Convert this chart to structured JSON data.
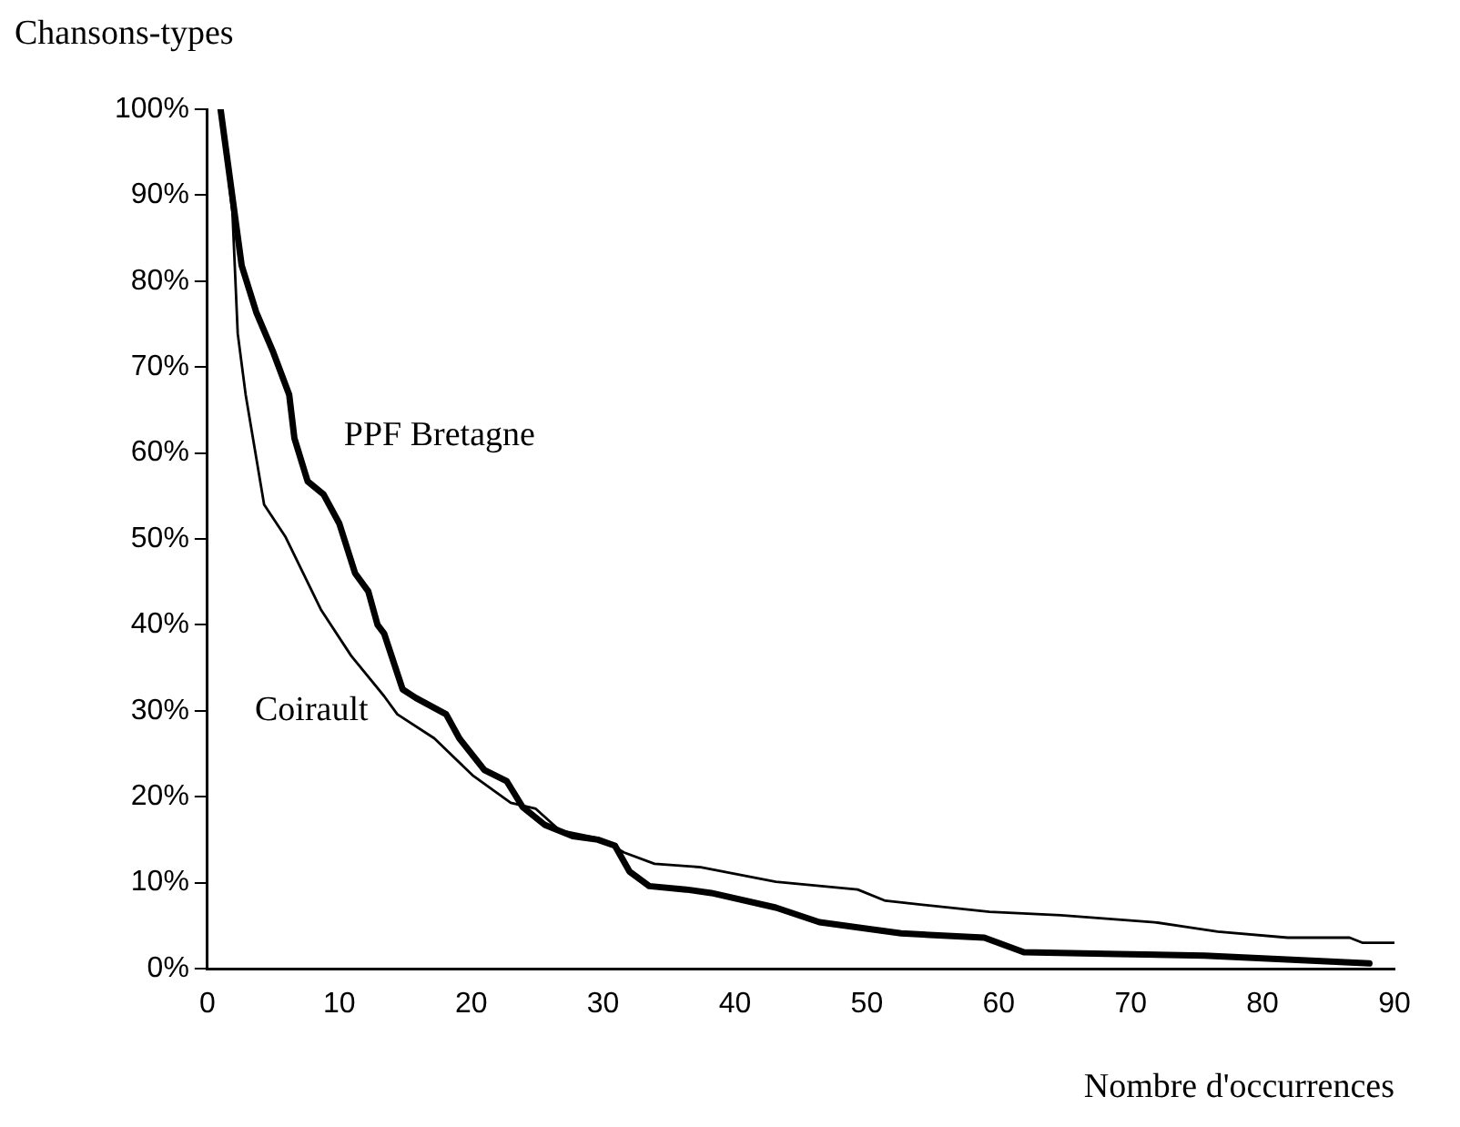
{
  "chart_data": {
    "type": "line",
    "xlabel": "Nombre d'occurrences",
    "ylabel": "Chansons-types",
    "xlim": [
      0,
      90
    ],
    "xticks": [
      0,
      10,
      20,
      30,
      40,
      50,
      60,
      70,
      80,
      90
    ],
    "ylim": [
      0,
      100
    ],
    "yticks": [
      {
        "value": 0,
        "label": "0%"
      },
      {
        "value": 10,
        "label": "10%"
      },
      {
        "value": 20,
        "label": "20%"
      },
      {
        "value": 30,
        "label": "30%"
      },
      {
        "value": 40,
        "label": "40%"
      },
      {
        "value": 50,
        "label": "50%"
      },
      {
        "value": 60,
        "label": "60%"
      },
      {
        "value": 70,
        "label": "70%"
      },
      {
        "value": 80,
        "label": "80%"
      },
      {
        "value": 90,
        "label": "90%"
      },
      {
        "value": 100,
        "label": "100%"
      }
    ],
    "grid": false,
    "legend": false,
    "marker": "none",
    "line_style": "solid",
    "series": [
      {
        "name": "PPF Bretagne",
        "color": "#000000",
        "x": [
          1,
          2.6,
          3.7,
          5,
          6.2,
          6.6,
          7.6,
          8.8,
          10,
          11.2,
          12.2,
          12.9,
          13.4,
          14.8,
          15.8,
          18.1,
          19.1,
          21,
          22.7,
          23.9,
          25.6,
          27.7,
          29.6,
          30.9,
          32,
          33.5,
          36.3,
          38.2,
          43.1,
          46.4,
          52.6,
          58.9,
          61.9,
          69,
          75.6,
          88.1
        ],
        "values": [
          100,
          81.8,
          76.4,
          71.7,
          66.8,
          61.7,
          56.7,
          55.2,
          51.8,
          46,
          43.9,
          40,
          39,
          32.5,
          31.5,
          29.6,
          26.8,
          23.1,
          21.8,
          18.8,
          16.7,
          15.4,
          15,
          14.3,
          11.3,
          9.6,
          9.2,
          8.8,
          7.1,
          5.4,
          4.1,
          3.6,
          1.9,
          1.7,
          1.5,
          0.6
        ]
      },
      {
        "name": "Coirault",
        "color": "#000000",
        "x": [
          1,
          1.9,
          2.3,
          2.9,
          4.3,
          5.9,
          8.6,
          10.9,
          13.4,
          14.4,
          17.2,
          20.1,
          23,
          24.9,
          26.7,
          29.6,
          31.6,
          33.9,
          37.4,
          43.1,
          49.3,
          51.4,
          59.3,
          64.7,
          71.8,
          76.6,
          81.9,
          86.6,
          87.6,
          90
        ],
        "values": [
          100,
          88,
          73.9,
          66.8,
          54,
          50.3,
          41.8,
          36.4,
          31.7,
          29.6,
          26.8,
          22.5,
          19.3,
          18.6,
          16.1,
          15.2,
          13.5,
          12.2,
          11.8,
          10.1,
          9.2,
          7.9,
          6.6,
          6.2,
          5.4,
          4.3,
          3.6,
          3.6,
          3,
          3
        ]
      }
    ]
  }
}
